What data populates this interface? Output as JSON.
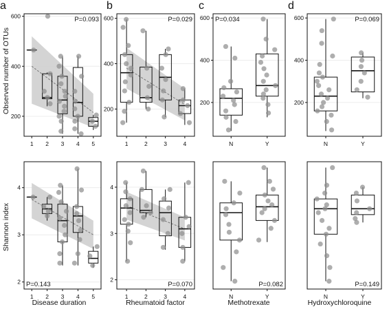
{
  "figure": {
    "panel_letters": [
      "a",
      "b",
      "c",
      "d"
    ],
    "ylabel_top": "Observed number of OTUs",
    "ylabel_bottom": "Shannon index",
    "xlabels": [
      "Disease duration",
      "Rheumatoid factor",
      "Methotrexate",
      "Hydroxychloroquine"
    ]
  },
  "chart_data": [
    {
      "type": "box",
      "row": "top",
      "column": "a",
      "show_yaxis": true,
      "categories": [
        "1",
        "2",
        "3",
        "4",
        "5"
      ],
      "ylabel": "Observed number of OTUs",
      "xlabel": "",
      "ylim": [
        120,
        610
      ],
      "yticks": [
        200,
        400,
        600
      ],
      "pvalue": "P=0.093",
      "pvalue_position": "top-right",
      "trend": {
        "y_start": 400,
        "y_end": 215,
        "band_low_start": 250,
        "band_high_start": 520,
        "band_low_end": 155,
        "band_high_end": 290
      },
      "boxes": [
        {
          "min": 465,
          "q1": 465,
          "median": 465,
          "q3": 465,
          "max": 465
        },
        {
          "min": 240,
          "q1": 270,
          "median": 275,
          "q3": 370,
          "max": 375
        },
        {
          "min": 130,
          "q1": 210,
          "median": 265,
          "q3": 360,
          "max": 440
        },
        {
          "min": 130,
          "q1": 200,
          "median": 255,
          "q3": 395,
          "max": 440
        },
        {
          "min": 145,
          "q1": 160,
          "median": 180,
          "q3": 195,
          "max": 205
        }
      ],
      "points": [
        [
          1,
          465
        ],
        [
          2,
          600
        ],
        [
          2,
          250
        ],
        [
          2,
          275
        ],
        [
          2,
          300
        ],
        [
          2,
          370
        ],
        [
          3,
          440
        ],
        [
          3,
          400
        ],
        [
          3,
          360
        ],
        [
          3,
          330
        ],
        [
          3,
          300
        ],
        [
          3,
          280
        ],
        [
          3,
          260
        ],
        [
          3,
          240
        ],
        [
          3,
          220
        ],
        [
          3,
          200
        ],
        [
          3,
          180
        ],
        [
          3,
          140
        ],
        [
          4,
          440
        ],
        [
          4,
          360
        ],
        [
          4,
          300
        ],
        [
          4,
          260
        ],
        [
          4,
          230
        ],
        [
          4,
          200
        ],
        [
          4,
          180
        ],
        [
          4,
          150
        ],
        [
          4,
          130
        ],
        [
          5,
          205
        ],
        [
          5,
          180
        ],
        [
          5,
          160
        ]
      ]
    },
    {
      "type": "box",
      "row": "top",
      "column": "b",
      "show_yaxis": true,
      "categories": [
        "1",
        "2",
        "3",
        "4"
      ],
      "ylabel": "",
      "xlabel": "",
      "ylim": [
        80,
        620
      ],
      "yticks": [
        200,
        400,
        600
      ],
      "pvalue": "P=0.029",
      "pvalue_position": "top-right",
      "trend": {
        "y_start": 380,
        "y_end": 220,
        "band_low_start": 290,
        "band_high_start": 470,
        "band_low_end": 150,
        "band_high_end": 290
      },
      "boxes": [
        {
          "min": 140,
          "q1": 230,
          "median": 360,
          "q3": 440,
          "max": 595
        },
        {
          "min": 200,
          "q1": 230,
          "median": 250,
          "q3": 385,
          "max": 545
        },
        {
          "min": 165,
          "q1": 240,
          "median": 340,
          "q3": 440,
          "max": 465
        },
        {
          "min": 130,
          "q1": 180,
          "median": 215,
          "q3": 240,
          "max": 290
        }
      ],
      "points": [
        [
          1,
          595
        ],
        [
          1,
          560
        ],
        [
          1,
          480
        ],
        [
          1,
          440
        ],
        [
          1,
          400
        ],
        [
          1,
          380
        ],
        [
          1,
          350
        ],
        [
          1,
          320
        ],
        [
          1,
          280
        ],
        [
          1,
          230
        ],
        [
          1,
          190
        ],
        [
          1,
          140
        ],
        [
          2,
          545
        ],
        [
          2,
          380
        ],
        [
          2,
          300
        ],
        [
          2,
          250
        ],
        [
          2,
          200
        ],
        [
          3,
          465
        ],
        [
          3,
          440
        ],
        [
          3,
          380
        ],
        [
          3,
          330
        ],
        [
          3,
          280
        ],
        [
          3,
          240
        ],
        [
          3,
          165
        ],
        [
          4,
          290
        ],
        [
          4,
          240
        ],
        [
          4,
          215
        ],
        [
          4,
          180
        ],
        [
          4,
          140
        ]
      ]
    },
    {
      "type": "box",
      "row": "top",
      "column": "c",
      "show_yaxis": true,
      "categories": [
        "N",
        "Y"
      ],
      "ylabel": "",
      "xlabel": "",
      "ylim": [
        40,
        620
      ],
      "yticks": [
        200,
        400,
        600
      ],
      "pvalue": "P=0.034",
      "pvalue_position": "top-left",
      "boxes": [
        {
          "min": 65,
          "q1": 140,
          "median": 220,
          "q3": 265,
          "max": 465
        },
        {
          "min": 130,
          "q1": 230,
          "median": 280,
          "q3": 430,
          "max": 595
        }
      ],
      "points": [
        [
          1,
          465
        ],
        [
          1,
          410
        ],
        [
          1,
          300
        ],
        [
          1,
          270
        ],
        [
          1,
          250
        ],
        [
          1,
          230
        ],
        [
          1,
          210
        ],
        [
          1,
          190
        ],
        [
          1,
          160
        ],
        [
          1,
          130
        ],
        [
          1,
          110
        ],
        [
          1,
          70
        ],
        [
          2,
          595
        ],
        [
          2,
          500
        ],
        [
          2,
          450
        ],
        [
          2,
          420
        ],
        [
          2,
          390
        ],
        [
          2,
          360
        ],
        [
          2,
          330
        ],
        [
          2,
          300
        ],
        [
          2,
          280
        ],
        [
          2,
          260
        ],
        [
          2,
          240
        ],
        [
          2,
          220
        ],
        [
          2,
          190
        ],
        [
          2,
          150
        ]
      ]
    },
    {
      "type": "box",
      "row": "top",
      "column": "d",
      "show_yaxis": true,
      "categories": [
        "N",
        "Y"
      ],
      "ylabel": "",
      "xlabel": "",
      "ylim": [
        40,
        620
      ],
      "yticks": [
        200,
        400,
        600
      ],
      "pvalue": "P=0.069",
      "pvalue_position": "top-right",
      "boxes": [
        {
          "min": 65,
          "q1": 160,
          "median": 230,
          "q3": 320,
          "max": 595
        },
        {
          "min": 220,
          "q1": 250,
          "median": 350,
          "q3": 415,
          "max": 435
        }
      ],
      "points": [
        [
          1,
          595
        ],
        [
          1,
          540
        ],
        [
          1,
          480
        ],
        [
          1,
          420
        ],
        [
          1,
          380
        ],
        [
          1,
          340
        ],
        [
          1,
          320
        ],
        [
          1,
          300
        ],
        [
          1,
          280
        ],
        [
          1,
          260
        ],
        [
          1,
          240
        ],
        [
          1,
          220
        ],
        [
          1,
          200
        ],
        [
          1,
          180
        ],
        [
          1,
          160
        ],
        [
          1,
          140
        ],
        [
          1,
          110
        ],
        [
          1,
          70
        ],
        [
          2,
          435
        ],
        [
          2,
          400
        ],
        [
          2,
          370
        ],
        [
          2,
          340
        ],
        [
          2,
          300
        ],
        [
          2,
          260
        ],
        [
          2,
          225
        ]
      ]
    },
    {
      "type": "box",
      "row": "bottom",
      "column": "a",
      "show_yaxis": true,
      "categories": [
        "1",
        "2",
        "3",
        "4",
        "5"
      ],
      "ylabel": "Shannon index",
      "xlabel": "Disease duration",
      "ylim": [
        1.85,
        4.55
      ],
      "yticks": [
        2,
        3,
        4
      ],
      "pvalue": "P=0.143",
      "pvalue_position": "bottom-left",
      "trend": {
        "y_start": 3.75,
        "y_end": 3.0,
        "band_low_start": 3.35,
        "band_high_start": 4.1,
        "band_low_end": 2.7,
        "band_high_end": 3.3
      },
      "boxes": [
        {
          "min": 3.8,
          "q1": 3.8,
          "median": 3.8,
          "q3": 3.8,
          "max": 3.8
        },
        {
          "min": 3.3,
          "q1": 3.45,
          "median": 3.55,
          "q3": 3.65,
          "max": 3.8
        },
        {
          "min": 2.35,
          "q1": 2.85,
          "median": 3.3,
          "q3": 3.65,
          "max": 4.05
        },
        {
          "min": 2.35,
          "q1": 3.05,
          "median": 3.4,
          "q3": 3.6,
          "max": 4.4
        },
        {
          "min": 2.3,
          "q1": 2.4,
          "median": 2.5,
          "q3": 2.65,
          "max": 2.75
        }
      ],
      "points": [
        [
          1,
          3.8
        ],
        [
          2,
          3.8
        ],
        [
          2,
          3.6
        ],
        [
          2,
          3.5
        ],
        [
          2,
          3.4
        ],
        [
          3,
          4.05
        ],
        [
          3,
          3.9
        ],
        [
          3,
          3.7
        ],
        [
          3,
          3.5
        ],
        [
          3,
          3.35
        ],
        [
          3,
          3.2
        ],
        [
          3,
          3.0
        ],
        [
          3,
          2.85
        ],
        [
          3,
          2.6
        ],
        [
          3,
          2.4
        ],
        [
          4,
          4.4
        ],
        [
          4,
          3.95
        ],
        [
          4,
          3.6
        ],
        [
          4,
          3.45
        ],
        [
          4,
          3.3
        ],
        [
          4,
          3.1
        ],
        [
          4,
          2.9
        ],
        [
          4,
          2.6
        ],
        [
          4,
          2.4
        ],
        [
          5,
          2.75
        ],
        [
          5,
          2.55
        ],
        [
          5,
          2.35
        ]
      ]
    },
    {
      "type": "box",
      "row": "bottom",
      "column": "b",
      "show_yaxis": true,
      "categories": [
        "1",
        "2",
        "3",
        "4"
      ],
      "ylabel": "",
      "xlabel": "Rheumatoid factor",
      "ylim": [
        1.8,
        4.55
      ],
      "yticks": [
        2,
        3,
        4
      ],
      "pvalue": "P=0.070",
      "pvalue_position": "bottom-right",
      "trend": {
        "y_start": 3.6,
        "y_end": 3.1,
        "band_low_start": 3.3,
        "band_high_start": 3.9,
        "band_low_end": 2.85,
        "band_high_end": 3.35
      },
      "boxes": [
        {
          "min": 2.4,
          "q1": 3.2,
          "median": 3.55,
          "q3": 3.75,
          "max": 4.1
        },
        {
          "min": 3.35,
          "q1": 3.45,
          "median": 3.5,
          "q3": 3.95,
          "max": 4.35
        },
        {
          "min": 2.65,
          "q1": 2.95,
          "median": 3.45,
          "q3": 3.7,
          "max": 3.95
        },
        {
          "min": 2.4,
          "q1": 2.7,
          "median": 3.1,
          "q3": 3.35,
          "max": 4.1
        }
      ],
      "points": [
        [
          1,
          4.1
        ],
        [
          1,
          3.9
        ],
        [
          1,
          3.75
        ],
        [
          1,
          3.6
        ],
        [
          1,
          3.45
        ],
        [
          1,
          3.3
        ],
        [
          1,
          3.2
        ],
        [
          1,
          3.05
        ],
        [
          1,
          2.8
        ],
        [
          1,
          2.4
        ],
        [
          2,
          4.35
        ],
        [
          2,
          3.95
        ],
        [
          2,
          3.6
        ],
        [
          2,
          3.45
        ],
        [
          2,
          3.35
        ],
        [
          3,
          3.95
        ],
        [
          3,
          3.75
        ],
        [
          3,
          3.55
        ],
        [
          3,
          3.3
        ],
        [
          3,
          3.0
        ],
        [
          3,
          2.7
        ],
        [
          4,
          4.1
        ],
        [
          4,
          3.35
        ],
        [
          4,
          3.15
        ],
        [
          4,
          3.0
        ],
        [
          4,
          2.7
        ],
        [
          4,
          2.4
        ]
      ]
    },
    {
      "type": "box",
      "row": "bottom",
      "column": "c",
      "show_yaxis": false,
      "categories": [
        "N",
        "Y"
      ],
      "ylabel": "",
      "xlabel": "Methotrexate",
      "ylim": [
        1.35,
        4.6
      ],
      "yticks": [],
      "pvalue": "P=0.082",
      "pvalue_position": "bottom-right",
      "boxes": [
        {
          "min": 1.55,
          "q1": 2.6,
          "median": 3.3,
          "q3": 3.55,
          "max": 4.1
        },
        {
          "min": 2.55,
          "q1": 3.1,
          "median": 3.45,
          "q3": 3.75,
          "max": 4.45
        }
      ],
      "points": [
        [
          1,
          4.1
        ],
        [
          1,
          3.8
        ],
        [
          1,
          3.55
        ],
        [
          1,
          3.4
        ],
        [
          1,
          3.25
        ],
        [
          1,
          3.0
        ],
        [
          1,
          2.8
        ],
        [
          1,
          2.6
        ],
        [
          1,
          2.3
        ],
        [
          1,
          1.9
        ],
        [
          1,
          1.55
        ],
        [
          2,
          4.45
        ],
        [
          2,
          4.1
        ],
        [
          2,
          3.9
        ],
        [
          2,
          3.75
        ],
        [
          2,
          3.6
        ],
        [
          2,
          3.5
        ],
        [
          2,
          3.4
        ],
        [
          2,
          3.3
        ],
        [
          2,
          3.1
        ],
        [
          2,
          2.9
        ],
        [
          2,
          2.6
        ]
      ]
    },
    {
      "type": "box",
      "row": "bottom",
      "column": "d",
      "show_yaxis": false,
      "categories": [
        "N",
        "Y"
      ],
      "ylabel": "",
      "xlabel": "Hydroxychloroquine",
      "ylim": [
        1.35,
        4.6
      ],
      "yticks": [],
      "pvalue": "P=0.149",
      "pvalue_position": "bottom-right",
      "boxes": [
        {
          "min": 1.55,
          "q1": 2.75,
          "median": 3.4,
          "q3": 3.65,
          "max": 4.45
        },
        {
          "min": 3.05,
          "q1": 3.25,
          "median": 3.4,
          "q3": 3.75,
          "max": 3.95
        }
      ],
      "points": [
        [
          1,
          4.45
        ],
        [
          1,
          4.0
        ],
        [
          1,
          3.8
        ],
        [
          1,
          3.65
        ],
        [
          1,
          3.5
        ],
        [
          1,
          3.4
        ],
        [
          1,
          3.3
        ],
        [
          1,
          3.1
        ],
        [
          1,
          2.9
        ],
        [
          1,
          2.75
        ],
        [
          1,
          2.5
        ],
        [
          1,
          2.2
        ],
        [
          1,
          1.9
        ],
        [
          1,
          1.55
        ],
        [
          2,
          3.95
        ],
        [
          2,
          3.8
        ],
        [
          2,
          3.6
        ],
        [
          2,
          3.4
        ],
        [
          2,
          3.3
        ],
        [
          2,
          3.15
        ],
        [
          2,
          3.05
        ]
      ]
    }
  ]
}
